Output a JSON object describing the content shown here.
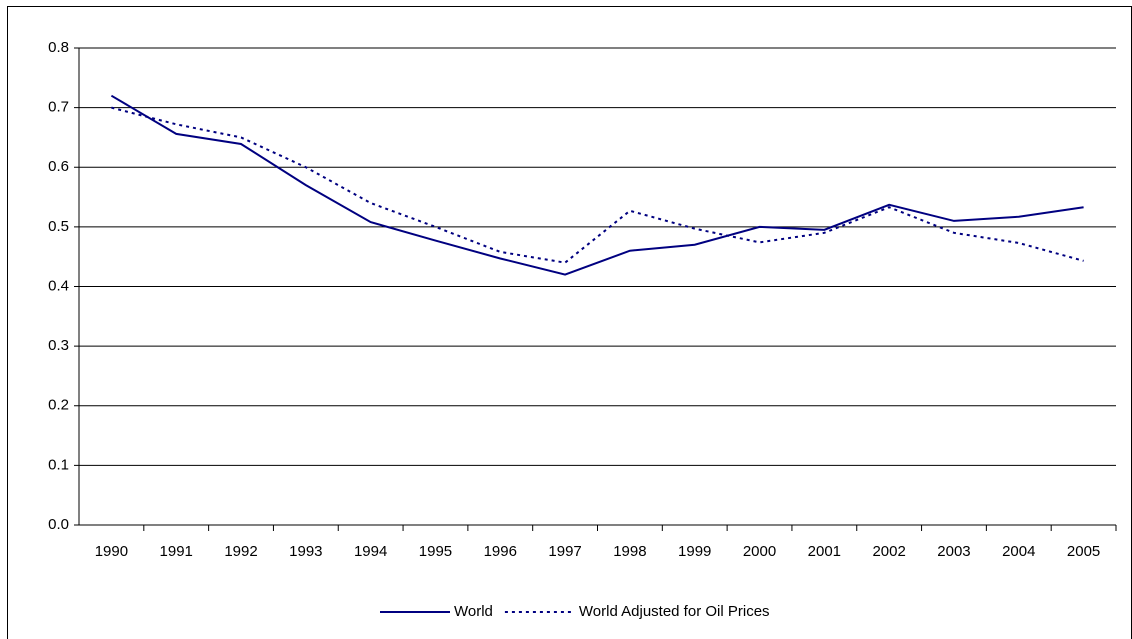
{
  "chart_data": {
    "type": "line",
    "categories": [
      "1990",
      "1991",
      "1992",
      "1993",
      "1994",
      "1995",
      "1996",
      "1997",
      "1998",
      "1999",
      "2000",
      "2001",
      "2002",
      "2003",
      "2004",
      "2005"
    ],
    "series": [
      {
        "name": "World",
        "color": "#000080",
        "line_style": "solid",
        "values": [
          0.72,
          0.656,
          0.639,
          0.57,
          0.508,
          0.477,
          0.447,
          0.42,
          0.46,
          0.47,
          0.5,
          0.495,
          0.537,
          0.51,
          0.517,
          0.533
        ]
      },
      {
        "name": "World Adjusted for Oil Prices",
        "color": "#000080",
        "line_style": "dotted",
        "values": [
          0.7,
          0.672,
          0.65,
          0.6,
          0.54,
          0.5,
          0.458,
          0.44,
          0.527,
          0.497,
          0.474,
          0.49,
          0.533,
          0.49,
          0.473,
          0.443
        ]
      }
    ],
    "ylim": [
      0,
      0.8
    ],
    "yticks": [
      {
        "value": 0,
        "label": "0.0"
      },
      0.1,
      0.2,
      0.3,
      0.4,
      0.5,
      0.6,
      0.7,
      0.8
    ],
    "grid": true,
    "legend": "bottom"
  }
}
